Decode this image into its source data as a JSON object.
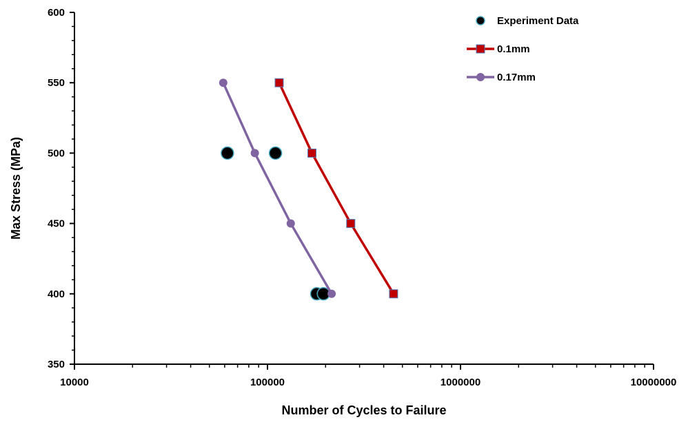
{
  "chart_data": {
    "type": "scatter",
    "title": "",
    "xlabel": "Number of Cycles to Failure",
    "ylabel": "Max Stress (MPa)",
    "xscale": "log",
    "xlim": [
      10000,
      10000000
    ],
    "ylim": [
      350,
      600
    ],
    "xticks": [
      10000,
      100000,
      1000000,
      10000000
    ],
    "xtick_labels": [
      "10000",
      "100000",
      "1000000",
      "10000000"
    ],
    "yticks": [
      350,
      400,
      450,
      500,
      550,
      600
    ],
    "ytick_labels": [
      "350",
      "400",
      "450",
      "500",
      "550",
      "600"
    ],
    "grid": false,
    "legend_position": "top-right",
    "series": [
      {
        "name": "Experiment Data",
        "kind": "scatter",
        "marker": "circle",
        "color": "#000000",
        "edge_color": "#4BACC6",
        "points": [
          {
            "x": 62000,
            "y": 500
          },
          {
            "x": 110000,
            "y": 500
          },
          {
            "x": 180000,
            "y": 400
          },
          {
            "x": 195000,
            "y": 400
          }
        ]
      },
      {
        "name": "0.1mm",
        "kind": "line",
        "marker": "square",
        "color": "#C00000",
        "marker_color": "#C00000",
        "edge_color": "#4F81BD",
        "points": [
          {
            "x": 115000,
            "y": 550
          },
          {
            "x": 170000,
            "y": 500
          },
          {
            "x": 270000,
            "y": 450
          },
          {
            "x": 450000,
            "y": 400
          }
        ]
      },
      {
        "name": "0.17mm",
        "kind": "line",
        "marker": "circle",
        "color": "#8064A2",
        "marker_color": "#8064A2",
        "points": [
          {
            "x": 59000,
            "y": 550
          },
          {
            "x": 86000,
            "y": 500
          },
          {
            "x": 132000,
            "y": 450
          },
          {
            "x": 215000,
            "y": 400
          }
        ]
      }
    ]
  }
}
